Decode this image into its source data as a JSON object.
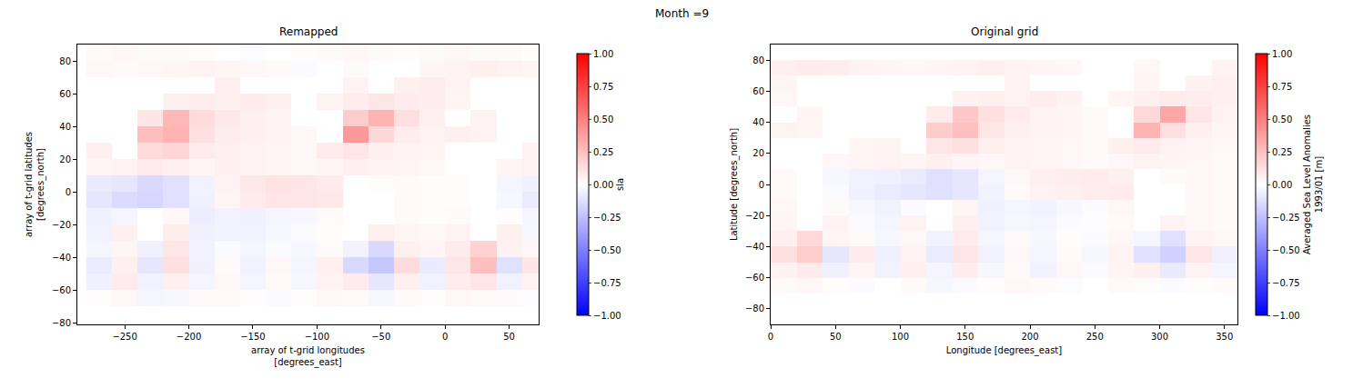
{
  "title": "Month =9",
  "chart_data": [
    {
      "type": "heatmap",
      "title": "Remapped",
      "x_label": "array of t-grid longitudes [degrees_east]",
      "y_label": "array of t-grid latitudes [degrees_north]",
      "x": [
        -270,
        -250,
        -230,
        -210,
        -190,
        -170,
        -150,
        -130,
        -110,
        -90,
        -70,
        -50,
        -30,
        -10,
        10,
        30,
        50,
        70
      ],
      "y": [
        -75,
        -65,
        -55,
        -45,
        -35,
        -25,
        -15,
        -5,
        5,
        15,
        25,
        35,
        45,
        55,
        65,
        75,
        85
      ],
      "z": [
        [
          null,
          null,
          null,
          null,
          null,
          null,
          null,
          null,
          null,
          null,
          null,
          null,
          null,
          null,
          null,
          null,
          null,
          null
        ],
        [
          0.01,
          0.03,
          -0.04,
          -0.03,
          0.02,
          0.02,
          0.01,
          -0.02,
          0.01,
          0.03,
          0.02,
          -0.03,
          0.02,
          0.01,
          0.03,
          0.02,
          0.02,
          -0.01
        ],
        [
          -0.06,
          0.08,
          -0.05,
          0.06,
          -0.04,
          0.03,
          -0.04,
          0.02,
          -0.03,
          0.05,
          0.08,
          -0.1,
          0.06,
          -0.05,
          0.07,
          0.1,
          -0.05,
          0.05
        ],
        [
          -0.08,
          0.06,
          -0.1,
          0.12,
          -0.06,
          0.02,
          -0.05,
          0.03,
          -0.04,
          0.06,
          -0.15,
          -0.22,
          0.14,
          -0.08,
          0.1,
          0.25,
          -0.12,
          0.1
        ],
        [
          -0.04,
          0.04,
          -0.06,
          0.1,
          -0.05,
          -0.02,
          -0.04,
          -0.02,
          -0.03,
          0.02,
          -0.05,
          -0.15,
          0.06,
          0.04,
          0.08,
          0.18,
          0.05,
          0.03
        ],
        [
          -0.05,
          0.06,
          null,
          0.07,
          -0.06,
          -0.05,
          -0.05,
          -0.03,
          -0.02,
          0.01,
          null,
          0.06,
          0.04,
          0.03,
          0.05,
          null,
          0.06,
          -0.03
        ],
        [
          -0.06,
          -0.04,
          null,
          0.03,
          -0.07,
          -0.05,
          -0.06,
          -0.04,
          -0.03,
          0.02,
          null,
          null,
          0.02,
          0.01,
          0.02,
          null,
          0.01,
          -0.04
        ],
        [
          -0.1,
          -0.14,
          -0.16,
          -0.12,
          -0.06,
          0.04,
          0.08,
          0.1,
          0.1,
          0.09,
          null,
          null,
          0.02,
          0.01,
          0.01,
          null,
          -0.03,
          -0.08
        ],
        [
          -0.08,
          -0.1,
          -0.15,
          -0.12,
          -0.05,
          0.05,
          0.09,
          0.11,
          0.1,
          0.08,
          null,
          0.01,
          0.02,
          0.01,
          0.01,
          null,
          -0.04,
          -0.06
        ],
        [
          0.04,
          0.05,
          0.08,
          0.06,
          0.04,
          0.06,
          0.05,
          0.04,
          0.03,
          0.04,
          0.06,
          0.05,
          0.04,
          0.03,
          null,
          null,
          0.04,
          0.05
        ],
        [
          0.06,
          null,
          0.14,
          0.16,
          0.08,
          0.06,
          0.05,
          0.04,
          0.03,
          0.08,
          0.1,
          0.06,
          0.05,
          0.04,
          null,
          null,
          null,
          0.05
        ],
        [
          null,
          null,
          0.25,
          0.3,
          0.12,
          0.07,
          0.06,
          0.05,
          0.03,
          null,
          0.4,
          0.15,
          0.07,
          0.05,
          0.06,
          0.05,
          null,
          null
        ],
        [
          null,
          null,
          0.1,
          0.28,
          0.14,
          0.09,
          0.06,
          0.05,
          null,
          null,
          0.2,
          0.3,
          0.12,
          0.06,
          null,
          0.05,
          null,
          null
        ],
        [
          null,
          null,
          null,
          0.06,
          0.07,
          0.06,
          0.08,
          0.06,
          null,
          0.05,
          0.07,
          0.1,
          0.08,
          0.07,
          0.04,
          null,
          null,
          null
        ],
        [
          null,
          null,
          null,
          null,
          null,
          0.06,
          null,
          null,
          null,
          null,
          0.05,
          null,
          0.06,
          0.07,
          0.05,
          null,
          null,
          null
        ],
        [
          0.03,
          0.02,
          0.03,
          0.04,
          0.05,
          0.04,
          0.03,
          0.02,
          -0.02,
          null,
          0.02,
          null,
          null,
          0.04,
          0.05,
          0.06,
          0.05,
          0.04
        ],
        [
          0.02,
          0.03,
          0.02,
          0.02,
          0.01,
          0.0,
          -0.01,
          0.0,
          0.01,
          0.02,
          0.03,
          0.02,
          0.01,
          0.02,
          0.03,
          0.02,
          0.02,
          0.01
        ]
      ],
      "xlim": [
        -287,
        73
      ],
      "ylim": [
        -81,
        90
      ],
      "xticks": [
        {
          "value": -250,
          "label": "−250"
        },
        {
          "value": -200,
          "label": "−200"
        },
        {
          "value": -150,
          "label": "−150"
        },
        {
          "value": -100,
          "label": "−100"
        },
        {
          "value": -50,
          "label": "−50"
        },
        0,
        50
      ],
      "yticks": [
        {
          "value": -80,
          "label": "−80"
        },
        {
          "value": -60,
          "label": "−60"
        },
        {
          "value": -40,
          "label": "−40"
        },
        {
          "value": -20,
          "label": "−20"
        },
        0,
        20,
        40,
        60,
        80
      ],
      "colorbar": {
        "label": "sla",
        "range": [
          -1,
          1
        ],
        "ticks": [
          {
            "value": -1,
            "label": "−1.00"
          },
          {
            "value": -0.75,
            "label": "−0.75"
          },
          {
            "value": -0.5,
            "label": "−0.50"
          },
          {
            "value": -0.25,
            "label": "−0.25"
          },
          {
            "value": 0,
            "label": "0.00"
          },
          {
            "value": 0.25,
            "label": "0.25"
          },
          {
            "value": 0.5,
            "label": "0.50"
          },
          {
            "value": 0.75,
            "label": "0.75"
          },
          {
            "value": 1,
            "label": "1.00"
          }
        ]
      }
    },
    {
      "type": "heatmap",
      "title": "Original grid",
      "x_label": "Longitude [degrees_east]",
      "y_label": "Latitude [degrees_north]",
      "x": [
        10,
        30,
        50,
        70,
        90,
        110,
        130,
        150,
        170,
        190,
        210,
        230,
        250,
        270,
        290,
        310,
        330,
        350
      ],
      "y": [
        -85,
        -75,
        -65,
        -55,
        -45,
        -35,
        -25,
        -15,
        -5,
        5,
        15,
        25,
        35,
        45,
        55,
        65,
        75,
        85
      ],
      "z": [
        [
          null,
          null,
          null,
          null,
          null,
          null,
          null,
          null,
          null,
          null,
          null,
          null,
          null,
          null,
          null,
          null,
          null,
          null
        ],
        [
          null,
          null,
          null,
          null,
          null,
          null,
          null,
          null,
          null,
          null,
          null,
          null,
          null,
          null,
          null,
          null,
          null,
          null
        ],
        [
          0.02,
          0.03,
          0.01,
          -0.02,
          0.0,
          0.02,
          -0.03,
          -0.02,
          0.01,
          0.03,
          0.02,
          -0.01,
          0.0,
          0.02,
          0.01,
          -0.02,
          0.01,
          0.02
        ],
        [
          0.05,
          0.08,
          -0.06,
          0.04,
          -0.05,
          0.06,
          -0.04,
          0.07,
          -0.03,
          0.02,
          -0.05,
          0.03,
          -0.02,
          0.04,
          0.06,
          -0.08,
          0.05,
          -0.04
        ],
        [
          0.12,
          0.2,
          -0.1,
          0.08,
          -0.06,
          0.05,
          -0.08,
          0.1,
          -0.05,
          0.03,
          -0.04,
          0.02,
          -0.03,
          0.05,
          -0.12,
          -0.18,
          0.1,
          -0.06
        ],
        [
          0.06,
          0.15,
          0.04,
          0.02,
          -0.03,
          0.03,
          -0.05,
          0.08,
          -0.04,
          0.02,
          -0.03,
          0.01,
          -0.02,
          0.03,
          -0.04,
          -0.12,
          0.05,
          0.03
        ],
        [
          0.04,
          null,
          0.05,
          -0.02,
          -0.04,
          0.05,
          null,
          0.06,
          -0.05,
          -0.03,
          -0.04,
          -0.02,
          -0.01,
          0.02,
          null,
          0.05,
          0.03,
          0.02
        ],
        [
          0.03,
          null,
          0.02,
          -0.03,
          -0.05,
          -0.02,
          null,
          0.04,
          -0.06,
          -0.04,
          -0.05,
          -0.03,
          -0.02,
          0.03,
          null,
          null,
          0.03,
          0.02
        ],
        [
          0.02,
          null,
          -0.02,
          -0.06,
          -0.08,
          -0.1,
          -0.12,
          -0.1,
          -0.05,
          0.02,
          0.05,
          0.06,
          0.07,
          0.08,
          null,
          null,
          0.03,
          0.02
        ],
        [
          0.02,
          null,
          -0.03,
          -0.05,
          -0.06,
          -0.08,
          -0.12,
          -0.1,
          -0.04,
          0.03,
          0.06,
          0.07,
          0.08,
          0.06,
          null,
          0.02,
          0.03,
          0.02
        ],
        [
          null,
          null,
          0.03,
          0.04,
          0.05,
          0.04,
          0.06,
          0.04,
          0.03,
          0.05,
          0.04,
          0.03,
          0.02,
          0.03,
          0.05,
          0.04,
          0.03,
          0.02
        ],
        [
          null,
          null,
          null,
          0.04,
          0.05,
          null,
          0.1,
          0.12,
          0.06,
          0.05,
          0.04,
          0.03,
          0.02,
          0.06,
          0.08,
          0.05,
          0.04,
          0.03
        ],
        [
          0.05,
          0.04,
          null,
          null,
          null,
          null,
          0.2,
          0.25,
          0.1,
          0.06,
          0.05,
          0.04,
          0.02,
          null,
          0.3,
          0.12,
          0.06,
          0.04
        ],
        [
          null,
          0.04,
          null,
          null,
          null,
          null,
          0.08,
          0.22,
          0.12,
          0.08,
          0.05,
          0.04,
          0.02,
          null,
          0.15,
          0.35,
          0.1,
          0.05
        ],
        [
          0.03,
          null,
          null,
          null,
          null,
          null,
          null,
          0.05,
          0.06,
          0.05,
          0.07,
          0.05,
          null,
          0.04,
          0.06,
          0.08,
          0.07,
          0.06
        ],
        [
          0.04,
          null,
          null,
          null,
          null,
          null,
          null,
          null,
          null,
          0.05,
          null,
          null,
          null,
          null,
          0.04,
          null,
          0.05,
          0.06
        ],
        [
          0.06,
          0.08,
          0.07,
          0.05,
          0.04,
          0.03,
          0.04,
          0.05,
          0.06,
          0.05,
          0.04,
          0.03,
          null,
          null,
          0.03,
          null,
          null,
          0.05
        ],
        [
          null,
          null,
          null,
          null,
          null,
          null,
          null,
          null,
          null,
          null,
          null,
          null,
          null,
          null,
          null,
          null,
          null,
          null
        ]
      ],
      "xlim": [
        0,
        360
      ],
      "ylim": [
        -90,
        90
      ],
      "xticks": [
        0,
        50,
        100,
        150,
        200,
        250,
        300,
        350
      ],
      "yticks": [
        {
          "value": -80,
          "label": "−80"
        },
        {
          "value": -60,
          "label": "−60"
        },
        {
          "value": -40,
          "label": "−40"
        },
        {
          "value": -20,
          "label": "−20"
        },
        0,
        20,
        40,
        60,
        80
      ],
      "colorbar": {
        "label": "Averaged Sea Level Anomalies 1993/01 [m]",
        "range": [
          -1,
          1
        ],
        "ticks": [
          {
            "value": -1,
            "label": "−1.00"
          },
          {
            "value": -0.75,
            "label": "−0.75"
          },
          {
            "value": -0.5,
            "label": "−0.50"
          },
          {
            "value": -0.25,
            "label": "−0.25"
          },
          {
            "value": 0,
            "label": "0.00"
          },
          {
            "value": 0.25,
            "label": "0.25"
          },
          {
            "value": 0.5,
            "label": "0.50"
          },
          {
            "value": 0.75,
            "label": "0.75"
          },
          {
            "value": 1,
            "label": "1.00"
          }
        ]
      }
    }
  ]
}
